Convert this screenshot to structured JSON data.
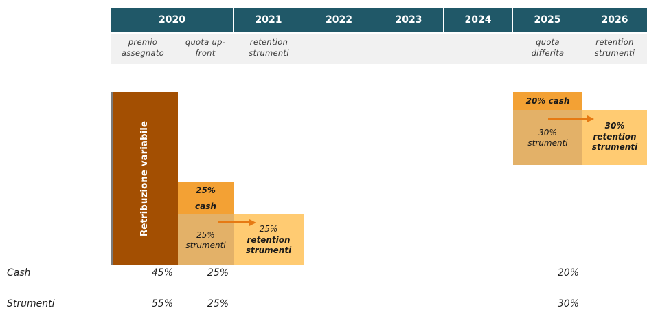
{
  "header": {
    "years": [
      "2020",
      "2021",
      "2022",
      "2023",
      "2024",
      "2025",
      "2026"
    ]
  },
  "descriptions": {
    "premio": "premio\nassegnato",
    "quota_upfront": "quota up-\nfront",
    "retention_2021": "retention\nstrumenti",
    "quota_differita": "quota\ndifferita",
    "retention_2026": "retention\nstrumenti"
  },
  "blocks": {
    "retribuzione": "Retribuzione variabile",
    "cash_2020_pct": "25%",
    "cash_2020_label": "cash",
    "strumenti_2020": "25%\nstrumenti",
    "retention_2021_pct": "25%",
    "retention_2021_label": "retention\nstrumenti",
    "cash_2025": "20% cash",
    "strumenti_2025": "30%\nstrumenti",
    "retention_2026_pct": "30%",
    "retention_2026_label": "retention\nstrumenti"
  },
  "rows": {
    "cash": {
      "label": "Cash",
      "v2020": "45%",
      "v2021": "25%",
      "v2025": "20%"
    },
    "strumenti": {
      "label": "Strumenti",
      "v2020": "55%",
      "v2021": "25%",
      "v2025": "30%"
    }
  },
  "colors": {
    "header_bg": "#205868",
    "retribuzione": "#a34f02",
    "cash_orange": "#f3a134",
    "strumenti_tan": "#e3b168",
    "retention_yellow": "#ffcb72",
    "arrow": "#e67a14"
  }
}
